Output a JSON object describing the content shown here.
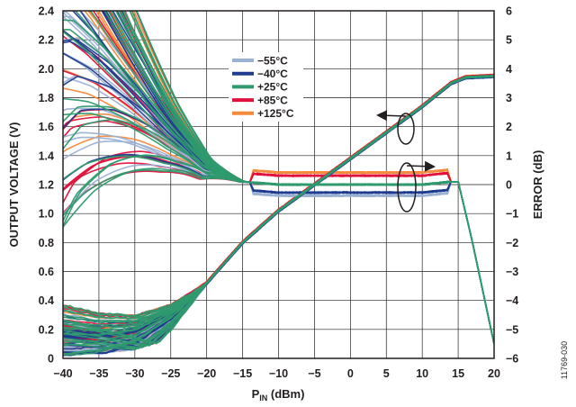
{
  "chart_data": {
    "type": "line",
    "xlabel_main": "P",
    "xlabel_sub": "IN",
    "xlabel_unit": " (dBm)",
    "ylabel_left": "OUTPUT VOLTAGE (V)",
    "ylabel_right": "ERROR (dB)",
    "xlim": [
      -40,
      20
    ],
    "ylim_left": [
      0,
      2.4
    ],
    "ylim_right": [
      -6,
      6
    ],
    "x_ticks": [
      "−40",
      "−35",
      "−30",
      "−25",
      "−20",
      "−15",
      "−10",
      "−5",
      "0",
      "5",
      "10",
      "15",
      "20"
    ],
    "y_left_ticks": [
      "0",
      "0.2",
      "0.4",
      "0.6",
      "0.8",
      "1.0",
      "1.2",
      "1.4",
      "1.6",
      "1.8",
      "2.0",
      "2.2",
      "2.4"
    ],
    "y_right_ticks": [
      "−6",
      "−5",
      "−4",
      "−3",
      "−2",
      "−1",
      "0",
      "1",
      "2",
      "3",
      "4",
      "5",
      "6"
    ],
    "grid": true,
    "legend_placement": "top-center",
    "series": [
      {
        "name": "−55°C",
        "color": "#9bb1d4"
      },
      {
        "name": "−40°C",
        "color": "#1f3c8f"
      },
      {
        "name": "+25°C",
        "color": "#2e9a6e"
      },
      {
        "name": "+85°C",
        "color": "#e0123c"
      },
      {
        "name": "+125°C",
        "color": "#f58a3c"
      }
    ],
    "output_voltage_curve": {
      "x": [
        -40,
        -35,
        -30,
        -25,
        -22,
        -20,
        -15,
        -10,
        -5,
        0,
        5,
        10,
        14,
        15,
        16,
        20
      ],
      "y": [
        0.02,
        0.05,
        0.12,
        0.28,
        0.42,
        0.52,
        0.8,
        1.02,
        1.2,
        1.38,
        1.56,
        1.74,
        1.9,
        1.92,
        1.94,
        1.95
      ]
    },
    "error_curve": {
      "x": [
        -40,
        -35,
        -30,
        -25,
        -22,
        -20,
        -15,
        -10,
        -5,
        0,
        5,
        10,
        14,
        15,
        17,
        20
      ],
      "y": [
        5.5,
        4.5,
        3.2,
        1.8,
        1.1,
        0.6,
        0.1,
        0.0,
        0.0,
        0.0,
        0.0,
        0.0,
        0.1,
        0.1,
        -2.0,
        -5.5
      ]
    },
    "annotations": [
      {
        "type": "ellipse-arrow",
        "points_to": "left axis",
        "curve": "output voltage"
      },
      {
        "type": "ellipse-arrow",
        "points_to": "right axis",
        "curve": "error"
      }
    ]
  },
  "figure_id": "11769-030"
}
